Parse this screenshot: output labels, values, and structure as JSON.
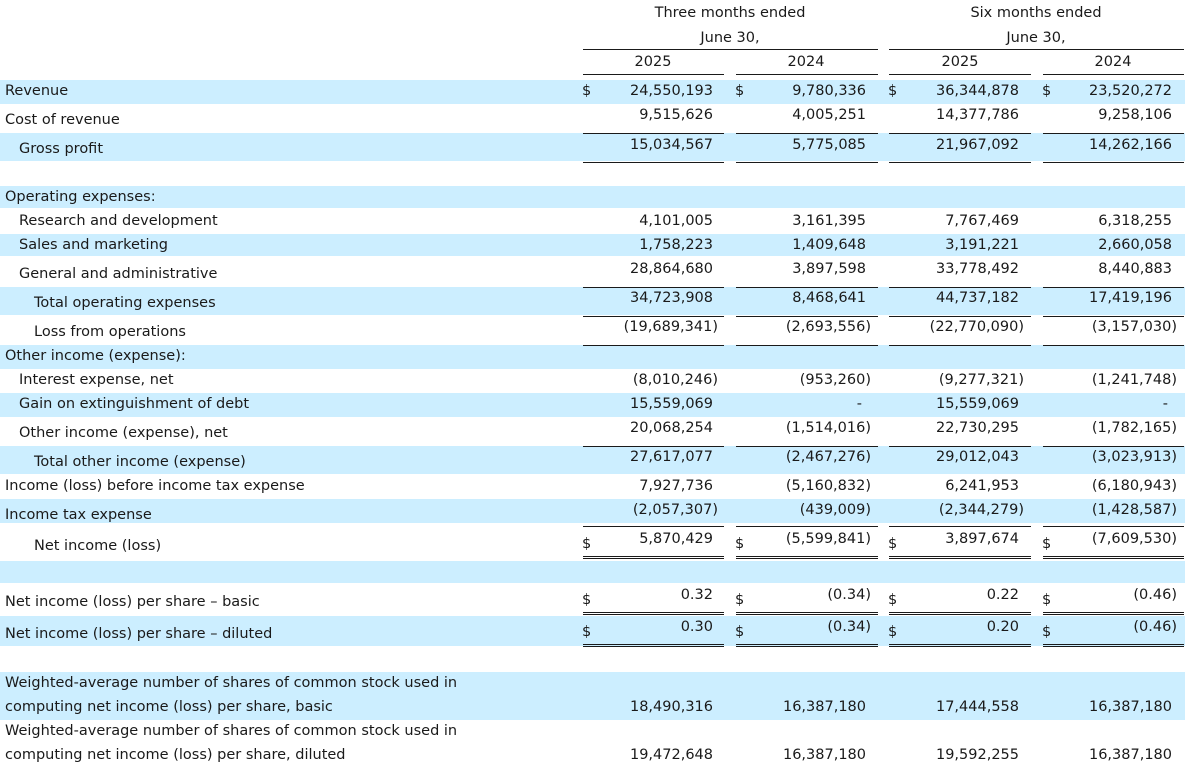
{
  "header": {
    "three_months_line1": "Three months ended",
    "three_months_line2": "June 30,",
    "six_months_line1": "Six months ended",
    "six_months_line2": "June 30,",
    "years": [
      "2025",
      "2024",
      "2025",
      "2024"
    ]
  },
  "currency_symbol": "$",
  "dash": "-",
  "rows": [
    {
      "key": "revenue",
      "label": "Revenue",
      "values": [
        "24,550,193",
        "9,780,336",
        "36,344,878",
        "23,520,272"
      ]
    },
    {
      "key": "cost-of-revenue",
      "label": "Cost of revenue",
      "values": [
        "9,515,626",
        "4,005,251",
        "14,377,786",
        "9,258,106"
      ]
    },
    {
      "key": "gross-profit",
      "label": "Gross profit",
      "values": [
        "15,034,567",
        "5,775,085",
        "21,967,092",
        "14,262,166"
      ]
    },
    {
      "key": "operating-expenses",
      "label": "Operating expenses:",
      "values": []
    },
    {
      "key": "research-and-development",
      "label": "Research and development",
      "values": [
        "4,101,005",
        "3,161,395",
        "7,767,469",
        "6,318,255"
      ]
    },
    {
      "key": "sales-and-marketing",
      "label": "Sales and marketing",
      "values": [
        "1,758,223",
        "1,409,648",
        "3,191,221",
        "2,660,058"
      ]
    },
    {
      "key": "general-and-administrative",
      "label": "General and administrative",
      "values": [
        "28,864,680",
        "3,897,598",
        "33,778,492",
        "8,440,883"
      ]
    },
    {
      "key": "total-operating-expenses",
      "label": "Total operating expenses",
      "values": [
        "34,723,908",
        "8,468,641",
        "44,737,182",
        "17,419,196"
      ]
    },
    {
      "key": "loss-from-operations",
      "label": "Loss from operations",
      "values": [
        "(19,689,341)",
        "(2,693,556)",
        "(22,770,090)",
        "(3,157,030)"
      ]
    },
    {
      "key": "other-income-expense",
      "label": "Other income (expense):",
      "values": []
    },
    {
      "key": "interest-expense-net",
      "label": "Interest expense, net",
      "values": [
        "(8,010,246)",
        "(953,260)",
        "(9,277,321)",
        "(1,241,748)"
      ]
    },
    {
      "key": "gain-on-extinguishment-of-debt",
      "label": "Gain on extinguishment of debt",
      "values": [
        "15,559,069",
        "-",
        "15,559,069",
        "-"
      ]
    },
    {
      "key": "other-income-expense-net",
      "label": "Other income (expense), net",
      "values": [
        "20,068,254",
        "(1,514,016)",
        "22,730,295",
        "(1,782,165)"
      ]
    },
    {
      "key": "total-other-income-expense",
      "label": "Total other income (expense)",
      "values": [
        "27,617,077",
        "(2,467,276)",
        "29,012,043",
        "(3,023,913)"
      ]
    },
    {
      "key": "income-loss-before-tax",
      "label": "Income (loss) before income tax expense",
      "values": [
        "7,927,736",
        "(5,160,832)",
        "6,241,953",
        "(6,180,943)"
      ]
    },
    {
      "key": "income-tax-expense",
      "label": "Income tax expense",
      "values": [
        "(2,057,307)",
        "(439,009)",
        "(2,344,279)",
        "(1,428,587)"
      ]
    },
    {
      "key": "net-income-loss",
      "label": "Net income (loss)",
      "values": [
        "5,870,429",
        "(5,599,841)",
        "3,897,674",
        "(7,609,530)"
      ]
    },
    {
      "key": "eps-basic",
      "label": "Net income (loss) per share – basic",
      "values": [
        "0.32",
        "(0.34)",
        "0.22",
        "(0.46)"
      ]
    },
    {
      "key": "eps-diluted",
      "label": "Net income (loss) per share – diluted",
      "values": [
        "0.30",
        "(0.34)",
        "0.20",
        "(0.46)"
      ]
    },
    {
      "key": "weighted-avg-basic",
      "label_line1": "Weighted-average number of shares of common stock used in",
      "label_line2": "computing net income (loss) per share, basic",
      "values": [
        "18,490,316",
        "16,387,180",
        "17,444,558",
        "16,387,180"
      ]
    },
    {
      "key": "weighted-avg-diluted",
      "label_line1": "Weighted-average number of shares of common stock used in",
      "label_line2": "computing net income (loss) per share, diluted",
      "values": [
        "19,472,648",
        "16,387,180",
        "19,592,255",
        "16,387,180"
      ]
    }
  ]
}
